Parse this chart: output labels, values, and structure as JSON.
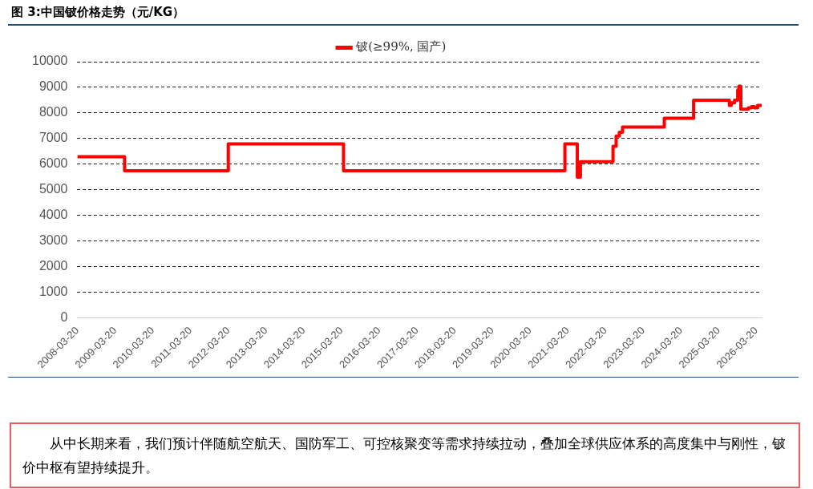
{
  "chart_data": {
    "type": "step",
    "title": "图 3:中国铍价格走势（元/KG）",
    "x": [
      "2008-03-20",
      "2009-06-20",
      "2012-03-20",
      "2015-04-10",
      "2021-02-20",
      "2021-06-20",
      "2021-07-20",
      "2022-06-01",
      "2022-07-01",
      "2022-08-01",
      "2022-09-01",
      "2023-10-10",
      "2024-07-20",
      "2025-07-01",
      "2025-07-20",
      "2025-08-20",
      "2025-09-20",
      "2025-10-01",
      "2025-10-20",
      "2026-01-01",
      "2026-02-01",
      "2026-03-01",
      "2026-04-01",
      "2026-05-10"
    ],
    "series": [
      {
        "name": "铍(≥99%, 国产)",
        "color": "#ff0000",
        "values": [
          6300,
          5750,
          6800,
          5750,
          6800,
          5500,
          6100,
          6700,
          7100,
          7250,
          7450,
          7800,
          8500,
          8300,
          8400,
          8500,
          8900,
          9050,
          8150,
          8200,
          8250,
          8200,
          8300,
          8250
        ]
      }
    ],
    "xlim": [
      "2008-03-20",
      "2026-05-10"
    ],
    "xticks": [
      "2008-03-20",
      "2009-03-20",
      "2010-03-20",
      "2011-03-20",
      "2012-03-20",
      "2013-03-20",
      "2014-03-20",
      "2015-03-20",
      "2016-03-20",
      "2017-03-20",
      "2018-03-20",
      "2019-03-20",
      "2020-03-20",
      "2021-03-20",
      "2022-03-20",
      "2023-03-20",
      "2024-03-20",
      "2025-03-20",
      "2026-03-20"
    ],
    "ylim": [
      0,
      10000
    ],
    "yticks": [
      0,
      1000,
      2000,
      3000,
      4000,
      5000,
      6000,
      7000,
      8000,
      9000,
      10000
    ],
    "grid": "y",
    "legend": "top",
    "marker": "none",
    "line_style": "solid",
    "annotations": [
      "从中长期来看，我们预计伴随航空航天、国防军工、可控核聚变等需求持续拉动，叠加全球供应体系的高度集中与刚性，铍价中枢有望持续提升。"
    ]
  }
}
